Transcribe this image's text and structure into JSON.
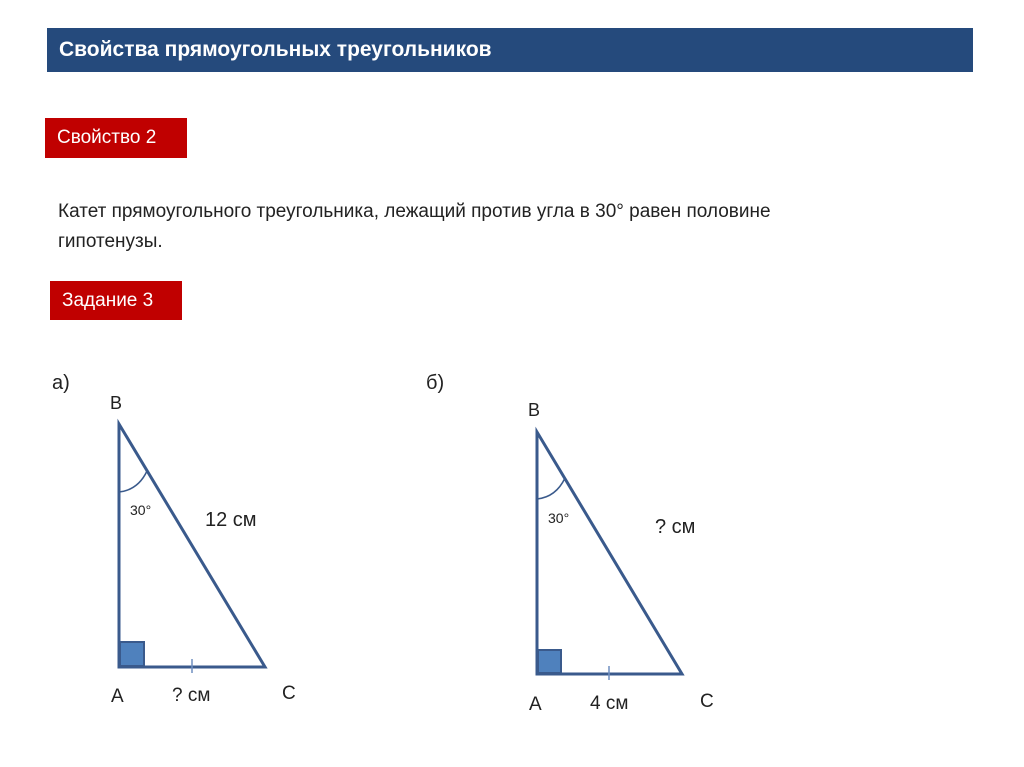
{
  "header": {
    "title": "Свойства прямоугольных треугольников"
  },
  "property": {
    "label": "Свойство 2",
    "text_line1": "Катет прямоугольного треугольника, лежащий против угла в 30° равен половине",
    "text_line2": "гипотенузы."
  },
  "task": {
    "label": "Задание 3"
  },
  "figure_a": {
    "label": "а)",
    "B": "B",
    "A": "A",
    "C": "C",
    "angle": "30°",
    "hypotenuse": "12 см",
    "leg": "? см"
  },
  "figure_b": {
    "label": "б)",
    "B": "B",
    "A": "A",
    "C": "C",
    "angle": "30°",
    "hypotenuse": "? см",
    "leg": "4 см"
  },
  "colors": {
    "header": "#254a7c",
    "badge": "#c00000",
    "line": "#3a5a8c",
    "right_angle_fill": "#4f81bd"
  }
}
